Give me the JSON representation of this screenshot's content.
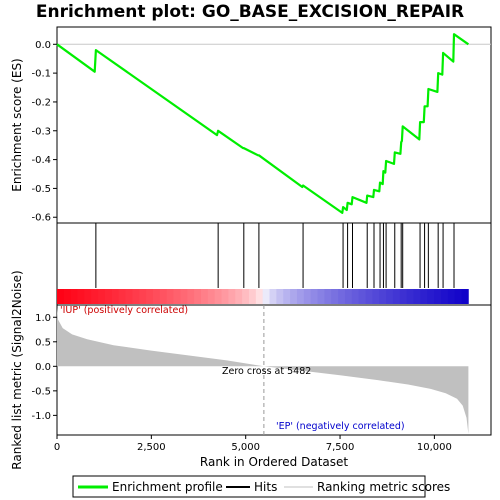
{
  "chart_data": {
    "type": "line",
    "title": "Enrichment plot: GO_BASE_EXCISION_REPAIR",
    "xlabel": "Rank in Ordered Dataset",
    "ylabel_top": "Enrichment score (ES)",
    "ylabel_bottom": "Ranked list metric (Signal2Noise)",
    "xlim": [
      0,
      11500
    ],
    "x_ticks": [
      0,
      2500,
      5000,
      7500,
      10000
    ],
    "x_tick_labels": [
      "0",
      "2,500",
      "5,000",
      "7,500",
      "10,000"
    ],
    "es_ylim": [
      -0.62,
      0.06
    ],
    "es_ticks": [
      0.0,
      -0.1,
      -0.2,
      -0.3,
      -0.4,
      -0.5,
      -0.6
    ],
    "es_tick_labels": [
      "0.0",
      "-0.1",
      "-0.2",
      "-0.3",
      "-0.4",
      "-0.5",
      "-0.6"
    ],
    "metric_ylim": [
      -1.4,
      1.25
    ],
    "metric_ticks": [
      1.0,
      0.5,
      0.0,
      -0.5,
      -1.0
    ],
    "metric_tick_labels": [
      "1.0",
      "0.5",
      "0.0",
      "-0.5",
      "-1.0"
    ],
    "n_genes": 10900,
    "zero_cross": 5482,
    "hits": [
      1030,
      4270,
      4950,
      5350,
      6520,
      7580,
      7700,
      7830,
      8220,
      8400,
      8560,
      8650,
      8720,
      8950,
      9120,
      9160,
      9620,
      9740,
      9840,
      10100,
      10230,
      10520
    ],
    "series": [
      {
        "name": "Enrichment profile",
        "color": "#00ee00",
        "x": [
          0,
          1000,
          1030,
          4240,
          4270,
          4930,
          4950,
          5330,
          5350,
          6500,
          6520,
          7560,
          7580,
          7680,
          7700,
          7810,
          7830,
          8200,
          8220,
          8380,
          8400,
          8540,
          8560,
          8630,
          8650,
          8700,
          8720,
          8930,
          8950,
          9100,
          9120,
          9140,
          9160,
          9600,
          9620,
          9720,
          9740,
          9820,
          9840,
          10080,
          10100,
          10210,
          10230,
          10500,
          10520,
          10900
        ],
        "y": [
          0.0,
          -0.095,
          -0.02,
          -0.315,
          -0.3,
          -0.36,
          -0.36,
          -0.385,
          -0.385,
          -0.495,
          -0.49,
          -0.585,
          -0.565,
          -0.575,
          -0.55,
          -0.555,
          -0.53,
          -0.55,
          -0.525,
          -0.53,
          -0.505,
          -0.51,
          -0.48,
          -0.485,
          -0.44,
          -0.445,
          -0.405,
          -0.415,
          -0.375,
          -0.38,
          -0.34,
          -0.335,
          -0.285,
          -0.33,
          -0.27,
          -0.27,
          -0.215,
          -0.215,
          -0.155,
          -0.165,
          -0.1,
          -0.105,
          -0.03,
          -0.06,
          0.035,
          0.0
        ]
      },
      {
        "name": "Hits",
        "color": "#000000"
      },
      {
        "name": "Ranking metric scores",
        "color": "#c0c0c0",
        "x": [
          0,
          30,
          150,
          400,
          800,
          1500,
          2500,
          3500,
          4500,
          5482,
          6500,
          7500,
          8500,
          9300,
          9900,
          10300,
          10600,
          10750,
          10850,
          10900
        ],
        "y": [
          1.2,
          0.95,
          0.78,
          0.65,
          0.55,
          0.43,
          0.32,
          0.22,
          0.12,
          0.0,
          -0.09,
          -0.18,
          -0.28,
          -0.37,
          -0.46,
          -0.55,
          -0.66,
          -0.8,
          -1.05,
          -1.38
        ]
      }
    ],
    "annotations": {
      "pos_label": "'IUP' (positively correlated)",
      "neg_label": "'EP' (negatively correlated)",
      "zero_label": "Zero cross at 5482",
      "pos_color": "#cc0000",
      "neg_color": "#0000cc"
    },
    "legend_position": "bottom"
  }
}
